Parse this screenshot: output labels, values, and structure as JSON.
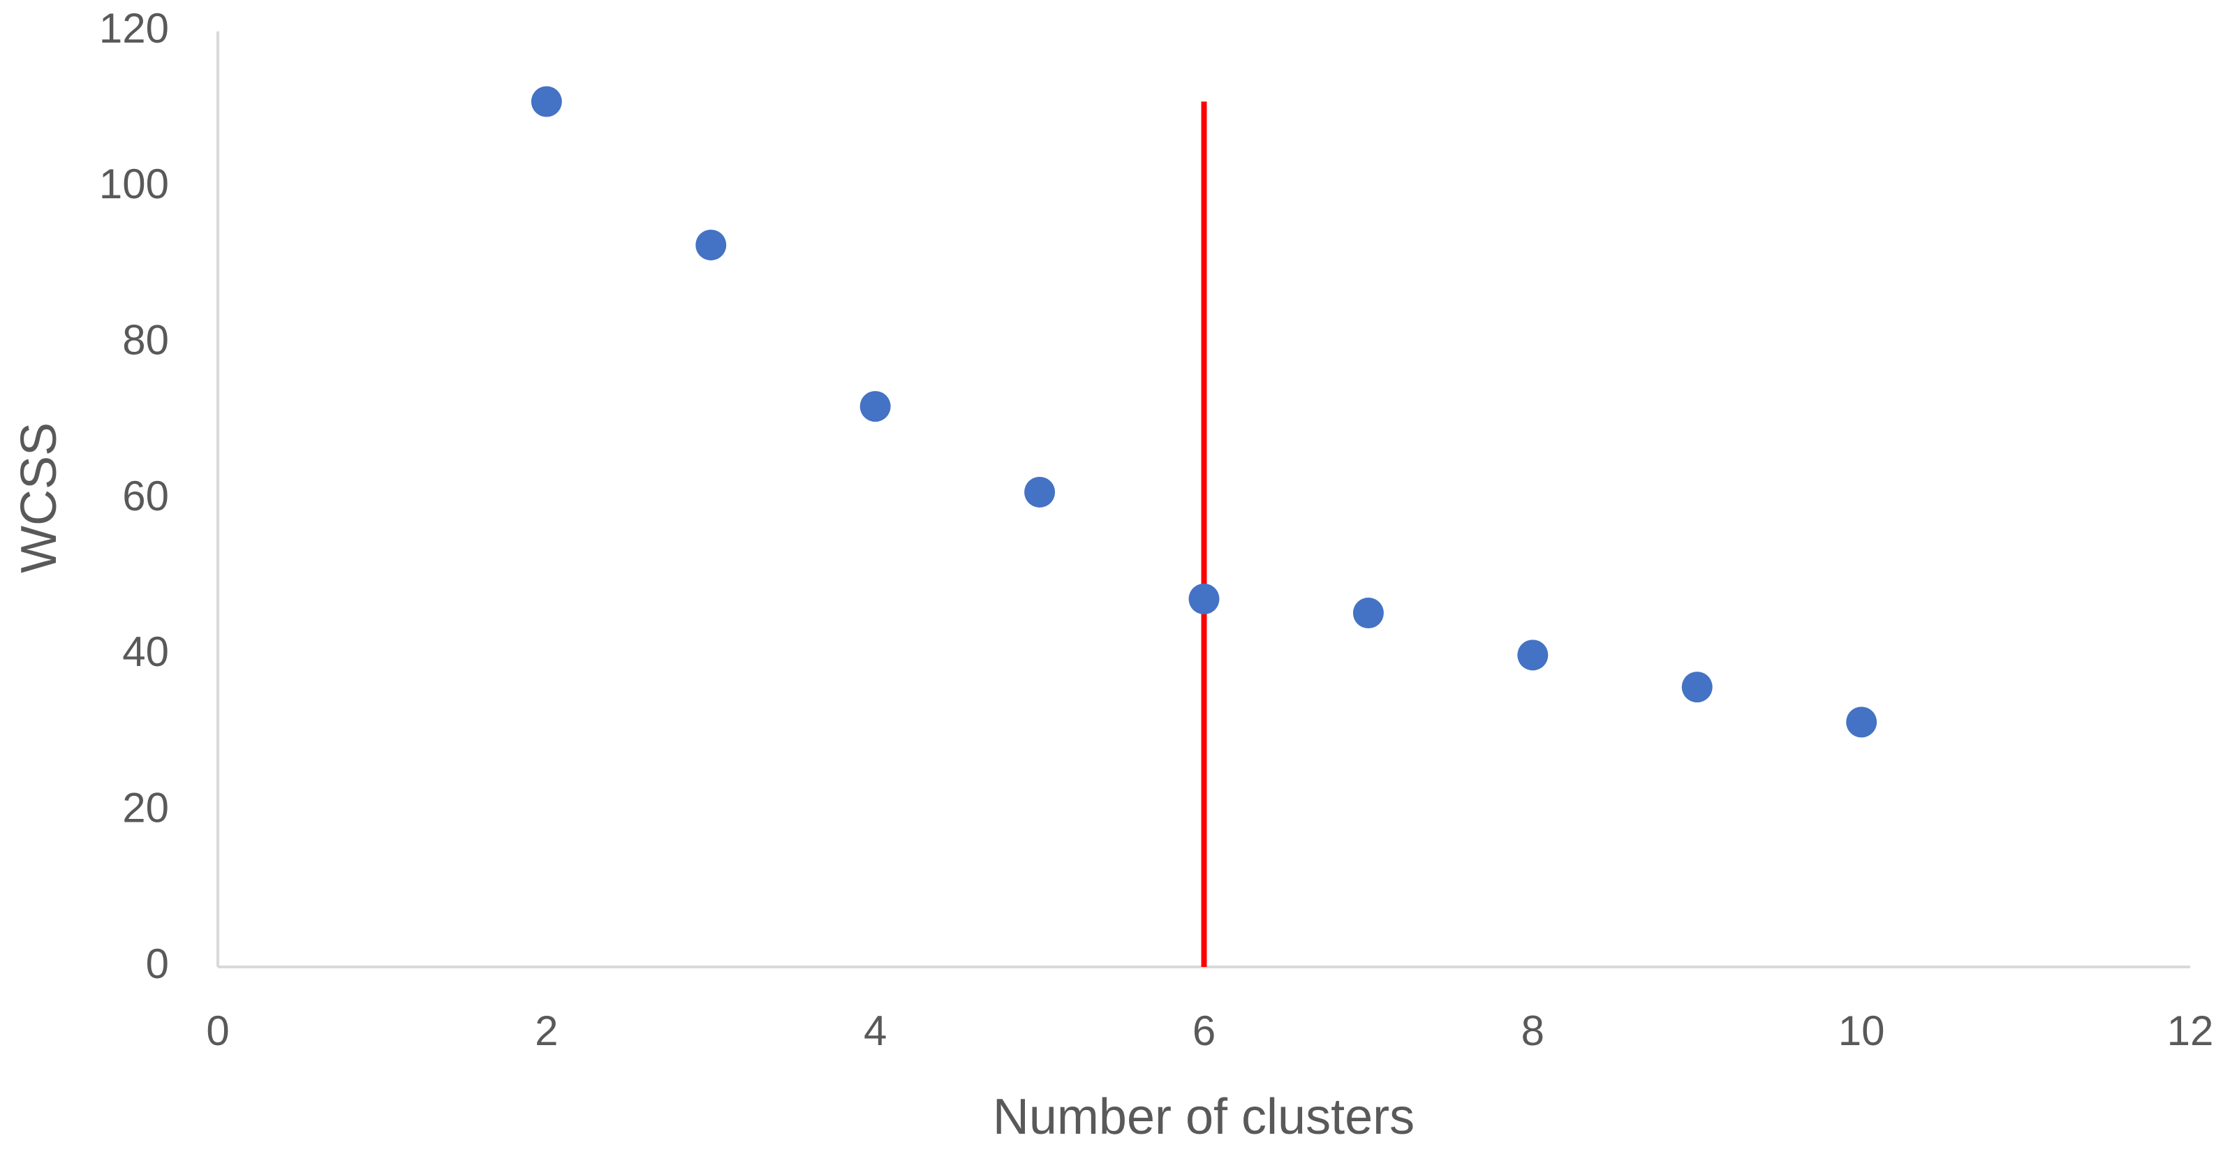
{
  "chart_data": {
    "type": "scatter",
    "x_label": "Number of clusters",
    "y_label": "WCSS",
    "series": [
      {
        "color": "#4472c4",
        "mode": "markers",
        "x": [
          2,
          3,
          4,
          5,
          6,
          7,
          8,
          9,
          10
        ],
        "values": [
          111,
          92.6,
          71.9,
          60.9,
          47.2,
          45.4,
          40,
          35.9,
          31.4
        ]
      },
      {
        "color": "#ff0000",
        "mode": "line",
        "x": [
          6,
          6
        ],
        "values": [
          0,
          111
        ]
      }
    ],
    "xlim": [
      0,
      12
    ],
    "xticks": [
      0,
      2,
      4,
      6,
      8,
      10,
      12
    ],
    "ylim": [
      0,
      120
    ],
    "yticks": [
      0,
      20,
      40,
      60,
      80,
      100,
      120
    ],
    "grid": false
  }
}
